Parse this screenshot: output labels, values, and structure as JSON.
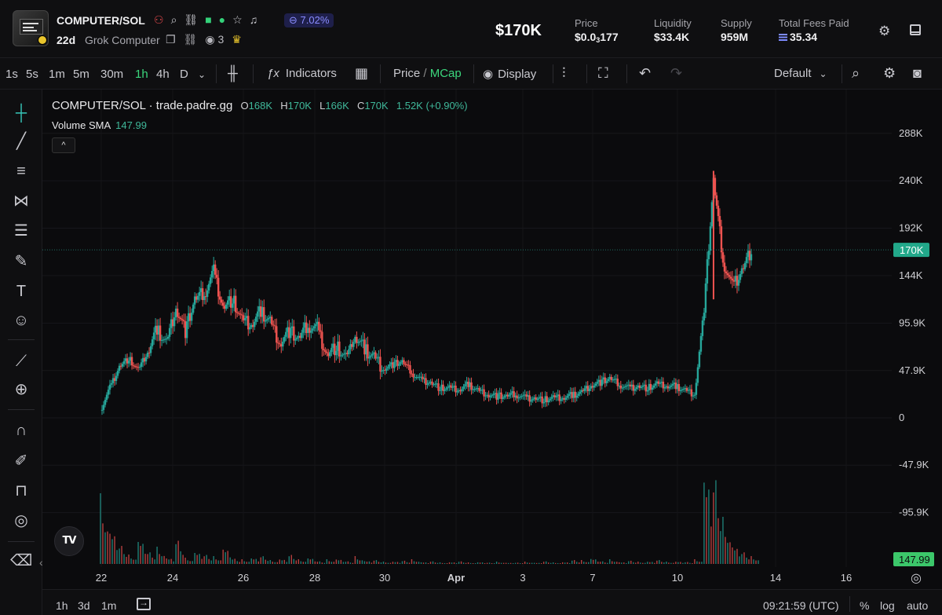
{
  "header": {
    "token_name": "COMPUTER/SOL",
    "change_pct": "7.02%",
    "age": "22d",
    "subname": "Grok Computer",
    "watchers": "3",
    "icons": [
      "people-icon",
      "search-icon",
      "link-icon",
      "bot-icon",
      "alien-icon",
      "star-icon",
      "bell-icon",
      "lock-icon",
      "copy-icon",
      "link-icon",
      "eye-icon",
      "trophy-icon"
    ],
    "market_cap": "$170K",
    "stats": [
      {
        "label": "Price",
        "value_main": "$0.0",
        "value_sub": "3",
        "value_tail": "177"
      },
      {
        "label": "Liquidity",
        "value": "$33.4K"
      },
      {
        "label": "Supply",
        "value": "959M"
      },
      {
        "label": "Total Fees Paid",
        "value": "35.34"
      }
    ]
  },
  "toolbar": {
    "timeframes": [
      "1s",
      "5s",
      "1m",
      "5m",
      "30m",
      "1h",
      "4h",
      "D"
    ],
    "active_timeframe": "1h",
    "indicators_label": "Indicators",
    "price_label": "Price",
    "slash": "/",
    "mcap_label": "MCap",
    "display_label": "Display",
    "layout_label": "Default"
  },
  "legend": {
    "title": "COMPUTER/SOL · trade.padre.gg",
    "o_label": "O",
    "o_val": "168K",
    "h_label": "H",
    "h_val": "170K",
    "l_label": "L",
    "l_val": "166K",
    "c_label": "C",
    "c_val": "170K",
    "change": "1.52K (+0.90%)",
    "volume_label": "Volume SMA",
    "volume_value": "147.99",
    "collapse_glyph": "^",
    "tv_logo": "TV"
  },
  "colors": {
    "up": "#26a69a",
    "down": "#ef5350",
    "accent": "#3bd67c",
    "badge": "#8a8cff"
  },
  "chart_data": {
    "type": "candlestick",
    "y_ticks": [
      "288K",
      "240K",
      "192K",
      "144K",
      "95.9K",
      "47.9K",
      "0",
      "-47.9K",
      "-95.9K"
    ],
    "y_tick_values": [
      288,
      240,
      192,
      144,
      95.9,
      47.9,
      0,
      -47.9,
      -95.9
    ],
    "ylim": [
      -128,
      318
    ],
    "x_ticks": [
      "22",
      "24",
      "26",
      "28",
      "30",
      "Apr",
      "3",
      "7",
      "10",
      "14",
      "16"
    ],
    "current_price_label": "170K",
    "current_price": 170,
    "volume_label": "147.99",
    "price_series_k": [
      [
        0,
        8
      ],
      [
        1,
        30
      ],
      [
        2,
        52
      ],
      [
        3,
        60
      ],
      [
        4,
        48
      ],
      [
        5,
        66
      ],
      [
        6,
        90
      ],
      [
        7,
        76
      ],
      [
        8,
        112
      ],
      [
        9,
        88
      ],
      [
        10,
        120
      ],
      [
        11,
        126
      ],
      [
        12,
        148
      ],
      [
        13,
        112
      ],
      [
        14,
        120
      ],
      [
        15,
        98
      ],
      [
        16,
        94
      ],
      [
        17,
        108
      ],
      [
        18,
        98
      ],
      [
        19,
        76
      ],
      [
        20,
        88
      ],
      [
        21,
        80
      ],
      [
        22,
        94
      ],
      [
        23,
        90
      ],
      [
        24,
        64
      ],
      [
        25,
        72
      ],
      [
        26,
        60
      ],
      [
        27,
        82
      ],
      [
        28,
        70
      ],
      [
        29,
        62
      ],
      [
        30,
        50
      ],
      [
        31,
        54
      ],
      [
        32,
        57
      ],
      [
        33,
        46
      ],
      [
        34,
        38
      ],
      [
        35,
        36
      ],
      [
        36,
        30
      ],
      [
        37,
        30
      ],
      [
        38,
        28
      ],
      [
        39,
        34
      ],
      [
        40,
        28
      ],
      [
        41,
        24
      ],
      [
        42,
        22
      ],
      [
        43,
        22
      ],
      [
        44,
        24
      ],
      [
        45,
        20
      ],
      [
        46,
        20
      ],
      [
        47,
        18
      ],
      [
        48,
        20
      ],
      [
        49,
        20
      ],
      [
        50,
        23
      ],
      [
        51,
        26
      ],
      [
        52,
        33
      ],
      [
        53,
        36
      ],
      [
        54,
        40
      ],
      [
        55,
        34
      ],
      [
        56,
        30
      ],
      [
        57,
        32
      ],
      [
        58,
        30
      ],
      [
        59,
        34
      ],
      [
        60,
        32
      ],
      [
        61,
        32
      ],
      [
        62,
        28
      ],
      [
        63,
        24
      ],
      [
        64,
        110
      ],
      [
        65,
        240
      ],
      [
        66,
        160
      ],
      [
        67,
        132
      ],
      [
        68,
        150
      ],
      [
        69,
        170
      ]
    ],
    "volume_series": [
      [
        0,
        90
      ],
      [
        1,
        55
      ],
      [
        2,
        28
      ],
      [
        3,
        12
      ],
      [
        4,
        40
      ],
      [
        5,
        18
      ],
      [
        6,
        22
      ],
      [
        7,
        10
      ],
      [
        8,
        36
      ],
      [
        9,
        8
      ],
      [
        10,
        20
      ],
      [
        11,
        14
      ],
      [
        12,
        10
      ],
      [
        13,
        26
      ],
      [
        14,
        8
      ],
      [
        15,
        6
      ],
      [
        16,
        10
      ],
      [
        17,
        12
      ],
      [
        18,
        5
      ],
      [
        19,
        8
      ],
      [
        20,
        14
      ],
      [
        21,
        6
      ],
      [
        22,
        10
      ],
      [
        23,
        4
      ],
      [
        24,
        6
      ],
      [
        25,
        8
      ],
      [
        26,
        4
      ],
      [
        27,
        10
      ],
      [
        28,
        5
      ],
      [
        29,
        6
      ],
      [
        30,
        3
      ],
      [
        31,
        4
      ],
      [
        32,
        5
      ],
      [
        33,
        6
      ],
      [
        34,
        3
      ],
      [
        35,
        4
      ],
      [
        36,
        2
      ],
      [
        37,
        3
      ],
      [
        38,
        4
      ],
      [
        39,
        2
      ],
      [
        40,
        3
      ],
      [
        41,
        2
      ],
      [
        42,
        3
      ],
      [
        43,
        2
      ],
      [
        44,
        2
      ],
      [
        45,
        3
      ],
      [
        46,
        2
      ],
      [
        47,
        4
      ],
      [
        48,
        2
      ],
      [
        49,
        3
      ],
      [
        50,
        6
      ],
      [
        51,
        5
      ],
      [
        52,
        9
      ],
      [
        53,
        4
      ],
      [
        54,
        6
      ],
      [
        55,
        3
      ],
      [
        56,
        5
      ],
      [
        57,
        3
      ],
      [
        58,
        4
      ],
      [
        59,
        6
      ],
      [
        60,
        3
      ],
      [
        61,
        4
      ],
      [
        62,
        3
      ],
      [
        63,
        6
      ],
      [
        64,
        148
      ],
      [
        65,
        130
      ],
      [
        66,
        60
      ],
      [
        67,
        30
      ],
      [
        68,
        18
      ],
      [
        69,
        10
      ]
    ]
  },
  "bottom": {
    "ranges": [
      "1h",
      "3d",
      "1m"
    ],
    "clock": "09:21:59 (UTC)",
    "percent": "%",
    "log": "log",
    "auto": "auto"
  }
}
